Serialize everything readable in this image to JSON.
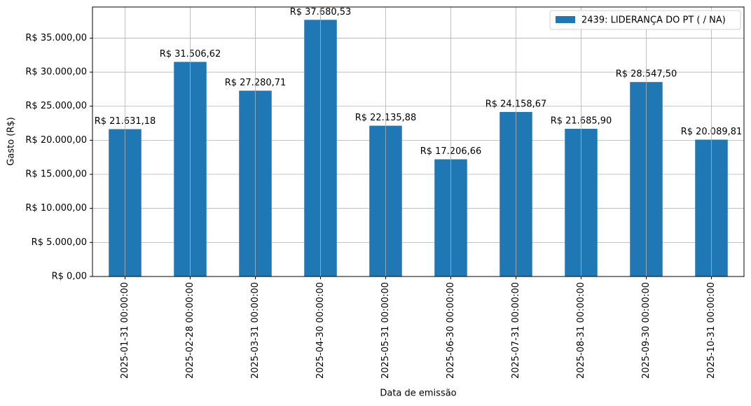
{
  "chart_data": {
    "type": "bar",
    "xlabel": "Data de emissão",
    "ylabel": "Gasto (R$)",
    "categories": [
      "2025-01-31 00:00:00",
      "2025-02-28 00:00:00",
      "2025-03-31 00:00:00",
      "2025-04-30 00:00:00",
      "2025-05-31 00:00:00",
      "2025-06-30 00:00:00",
      "2025-07-31 00:00:00",
      "2025-08-31 00:00:00",
      "2025-09-30 00:00:00",
      "2025-10-31 00:00:00"
    ],
    "series": [
      {
        "name": "2439: LIDERANÇA DO PT ( / NA)",
        "color": "#1f77b4",
        "values": [
          21631.18,
          31506.62,
          27280.71,
          37680.53,
          22135.88,
          17206.66,
          24158.67,
          21685.9,
          28547.5,
          20089.81
        ],
        "value_labels": [
          "R$ 21.631,18",
          "R$ 31.506,62",
          "R$ 27.280,71",
          "R$ 37.680,53",
          "R$ 22.135,88",
          "R$ 17.206,66",
          "R$ 24.158,67",
          "R$ 21.685,90",
          "R$ 28.547,50",
          "R$ 20.089,81"
        ]
      }
    ],
    "ylim": [
      0,
      39564.56
    ],
    "yticks": [
      {
        "value": 0,
        "label": "R$ 0,00"
      },
      {
        "value": 5000,
        "label": "R$ 5.000,00"
      },
      {
        "value": 10000,
        "label": "R$ 10.000,00"
      },
      {
        "value": 15000,
        "label": "R$ 15.000,00"
      },
      {
        "value": 20000,
        "label": "R$ 20.000,00"
      },
      {
        "value": 25000,
        "label": "R$ 25.000,00"
      },
      {
        "value": 30000,
        "label": "R$ 30.000,00"
      },
      {
        "value": 35000,
        "label": "R$ 35.000,00"
      }
    ],
    "grid": true,
    "legend": "upper right"
  }
}
